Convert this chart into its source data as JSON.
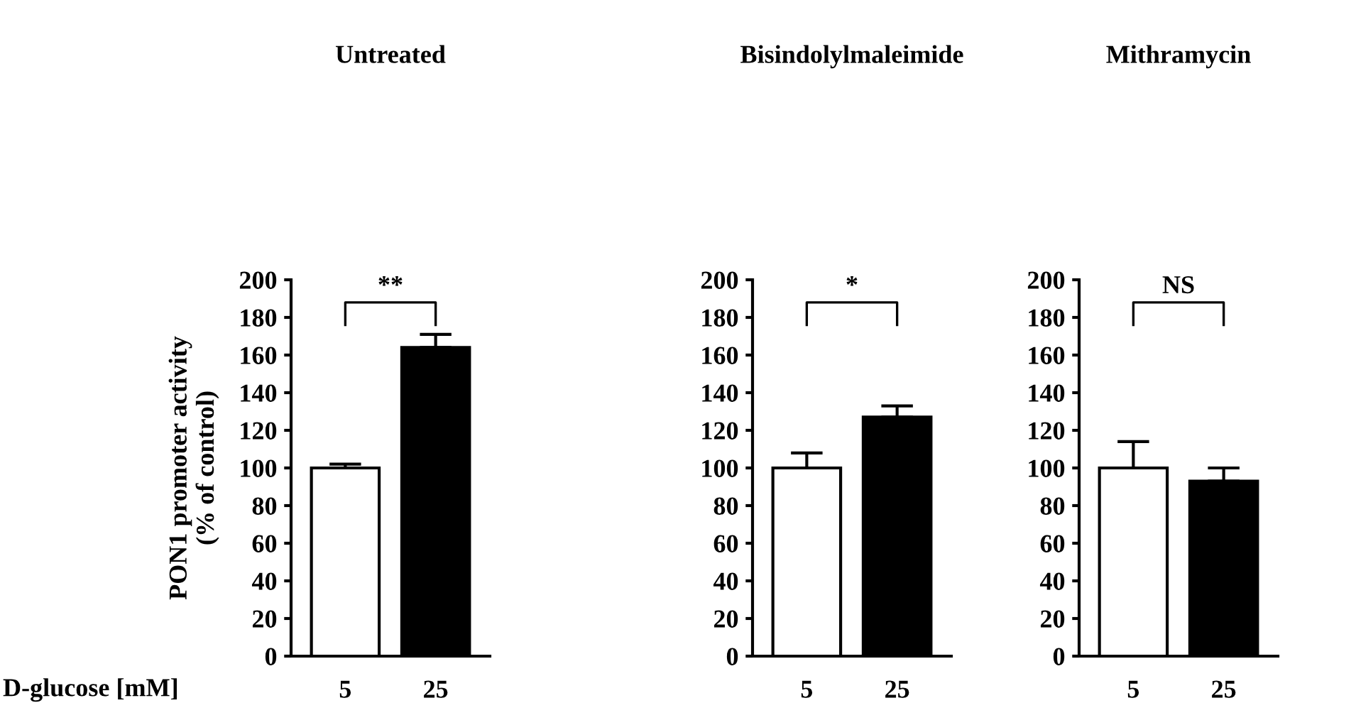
{
  "chart_data": [
    {
      "type": "bar",
      "title": "Untreated",
      "categories": [
        "5",
        "25"
      ],
      "values": [
        100,
        164
      ],
      "colors": [
        "#ffffff",
        "#000000"
      ],
      "errors": [
        [
          100,
          102
        ],
        [
          164,
          171
        ]
      ],
      "ylim": [
        0,
        200
      ],
      "yticks": [
        0,
        20,
        40,
        60,
        80,
        100,
        120,
        140,
        160,
        180,
        200
      ],
      "ylabel": "PON1 promoter activity\n(% of control)",
      "xlabel": "D-glucose [mM]",
      "annotations": [
        "**"
      ],
      "grid": false
    },
    {
      "type": "bar",
      "title": "Bisindolylmaleimide",
      "categories": [
        "5",
        "25"
      ],
      "values": [
        100,
        127
      ],
      "colors": [
        "#ffffff",
        "#000000"
      ],
      "errors": [
        [
          100,
          108
        ],
        [
          127,
          133
        ]
      ],
      "ylim": [
        0,
        200
      ],
      "yticks": [
        0,
        20,
        40,
        60,
        80,
        100,
        120,
        140,
        160,
        180,
        200
      ],
      "annotations": [
        "*"
      ],
      "grid": false
    },
    {
      "type": "bar",
      "title": "Mithramycin",
      "categories": [
        "5",
        "25"
      ],
      "values": [
        100,
        93
      ],
      "colors": [
        "#ffffff",
        "#000000"
      ],
      "errors": [
        [
          100,
          114
        ],
        [
          93,
          100
        ]
      ],
      "ylim": [
        0,
        200
      ],
      "yticks": [
        0,
        20,
        40,
        60,
        80,
        100,
        120,
        140,
        160,
        180,
        200
      ],
      "annotations": [
        "NS"
      ],
      "grid": false
    }
  ]
}
